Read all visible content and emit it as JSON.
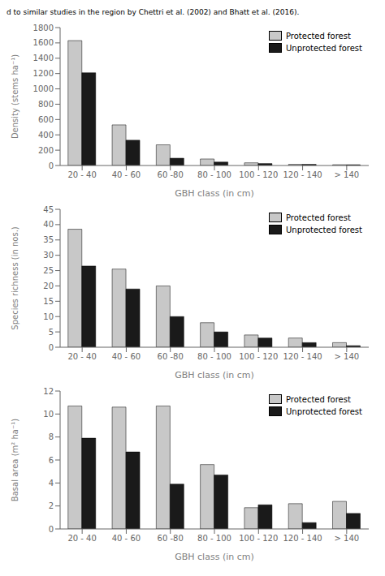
{
  "chart_data": [
    {
      "type": "bar",
      "title": "d to similar studies in the region by Chettri et al. (2002) and Bhatt et al. (2016).",
      "categories": [
        "20 - 40",
        "40 - 60",
        "60 -80",
        "80 - 100",
        "100 - 120",
        "120 - 140",
        "> 140"
      ],
      "series": [
        {
          "name": "Protected forest",
          "color": "#c8c8c8",
          "values": [
            1630,
            530,
            270,
            85,
            35,
            15,
            10
          ]
        },
        {
          "name": "Unprotected forest",
          "color": "#1a1a1a",
          "values": [
            1210,
            330,
            95,
            45,
            25,
            15,
            10
          ]
        }
      ],
      "x_label": "GBH class (in cm)",
      "y_label": "Density (stems ha⁻¹)",
      "ylim": [
        0,
        1800
      ],
      "yticks": [
        0,
        200,
        400,
        600,
        800,
        1000,
        1200,
        1400,
        1600,
        1800
      ],
      "legend": "upper right",
      "grid": false
    },
    {
      "type": "bar",
      "categories": [
        "20 - 40",
        "40 - 60",
        "60 -80",
        "80 - 100",
        "100 - 120",
        "120 - 140",
        "> 140"
      ],
      "series": [
        {
          "name": "Protected forest",
          "color": "#c8c8c8",
          "values": [
            38.5,
            25.5,
            20,
            8,
            4,
            3,
            1.5
          ]
        },
        {
          "name": "Unprotected forest",
          "color": "#1a1a1a",
          "values": [
            26.5,
            19,
            10,
            5,
            3,
            1.5,
            0.5
          ]
        }
      ],
      "x_label": "GBH class (in cm)",
      "y_label": "Species richness  (in nos.)",
      "ylim": [
        0,
        45
      ],
      "yticks": [
        0,
        5,
        10,
        15,
        20,
        25,
        30,
        35,
        40,
        45
      ],
      "legend": "upper right",
      "grid": false
    },
    {
      "type": "bar",
      "categories": [
        "20 - 40",
        "40 - 60",
        "60 -80",
        "80 - 100",
        "100 - 120",
        "120 - 140",
        "> 140"
      ],
      "series": [
        {
          "name": "Protected forest",
          "color": "#c8c8c8",
          "values": [
            10.7,
            10.6,
            10.7,
            5.6,
            1.85,
            2.2,
            2.4
          ]
        },
        {
          "name": "Unprotected forest",
          "color": "#1a1a1a",
          "values": [
            7.9,
            6.7,
            3.9,
            4.7,
            2.1,
            0.55,
            1.35
          ]
        }
      ],
      "x_label": "GBH class (in cm)",
      "y_label": "Basal area (m² ha⁻¹)",
      "ylim": [
        0,
        12
      ],
      "yticks": [
        0,
        2,
        4,
        6,
        8,
        10,
        12
      ],
      "legend": "upper right",
      "grid": false
    }
  ]
}
